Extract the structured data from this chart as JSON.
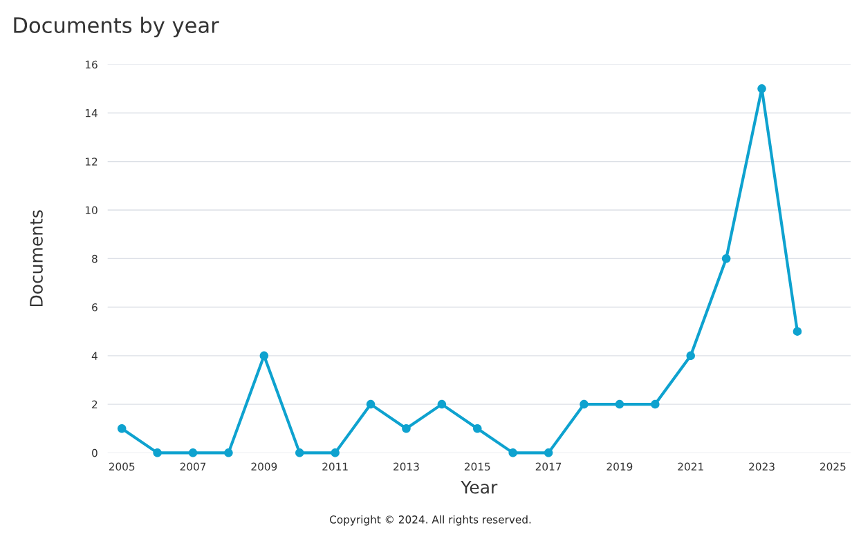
{
  "chart_data": {
    "type": "line",
    "title": "Documents by year",
    "xlabel": "Year",
    "ylabel": "Documents",
    "annotations": [
      "Copyright © 2024. All rights reserved."
    ],
    "x": [
      2005,
      2006,
      2007,
      2008,
      2009,
      2010,
      2011,
      2012,
      2013,
      2014,
      2015,
      2016,
      2017,
      2018,
      2019,
      2020,
      2021,
      2022,
      2023,
      2024
    ],
    "series": [
      {
        "color": "#0ea2cf",
        "values": [
          1,
          0,
          0,
          0,
          4,
          0,
          0,
          2,
          1,
          2,
          1,
          0,
          0,
          2,
          2,
          2,
          4,
          8,
          15,
          5
        ]
      }
    ],
    "xlim": [
      2004.6,
      2025.5
    ],
    "xticks": [
      2005,
      2007,
      2009,
      2011,
      2013,
      2015,
      2017,
      2019,
      2021,
      2023,
      2025
    ],
    "ylim": [
      0,
      16
    ],
    "yticks": [
      0,
      2,
      4,
      6,
      8,
      10,
      12,
      14,
      16
    ],
    "grid": "y",
    "marker": "circle",
    "line_style": "solid",
    "legend": false
  }
}
